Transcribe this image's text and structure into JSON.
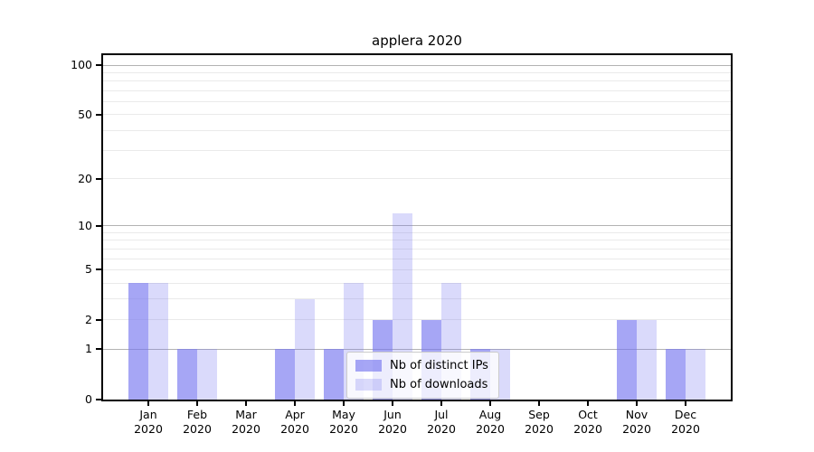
{
  "chart_data": {
    "type": "bar",
    "title": "applera 2020",
    "categories": [
      {
        "month": "Jan",
        "year": "2020"
      },
      {
        "month": "Feb",
        "year": "2020"
      },
      {
        "month": "Mar",
        "year": "2020"
      },
      {
        "month": "Apr",
        "year": "2020"
      },
      {
        "month": "May",
        "year": "2020"
      },
      {
        "month": "Jun",
        "year": "2020"
      },
      {
        "month": "Jul",
        "year": "2020"
      },
      {
        "month": "Aug",
        "year": "2020"
      },
      {
        "month": "Sep",
        "year": "2020"
      },
      {
        "month": "Oct",
        "year": "2020"
      },
      {
        "month": "Nov",
        "year": "2020"
      },
      {
        "month": "Dec",
        "year": "2020"
      }
    ],
    "series": [
      {
        "name": "Nb of distinct IPs",
        "key": "distinct-ips",
        "color": "rgba(118,118,240,0.65)",
        "values": [
          4,
          1,
          0,
          1,
          1,
          2,
          2,
          1,
          0,
          0,
          2,
          1
        ]
      },
      {
        "name": "Nb of downloads",
        "key": "downloads",
        "color": "rgba(118,118,240,0.27)",
        "values": [
          4,
          1,
          0,
          3,
          4,
          12,
          4,
          1,
          0,
          0,
          2,
          1
        ]
      }
    ],
    "yscale": "log1p",
    "ylim": [
      0,
      115
    ],
    "yticks": [
      100,
      50,
      20,
      10,
      5,
      2,
      1,
      0
    ],
    "grid_major": [
      1,
      10,
      100
    ],
    "grid_minor": [
      2,
      3,
      4,
      5,
      6,
      7,
      8,
      9,
      20,
      30,
      40,
      50,
      60,
      70,
      80,
      90
    ],
    "legend_position": "inside-lower-center",
    "colors": {
      "axis": "#000000",
      "grid_major": "#b3b3b3",
      "grid_minor": "#eaeaea"
    }
  }
}
